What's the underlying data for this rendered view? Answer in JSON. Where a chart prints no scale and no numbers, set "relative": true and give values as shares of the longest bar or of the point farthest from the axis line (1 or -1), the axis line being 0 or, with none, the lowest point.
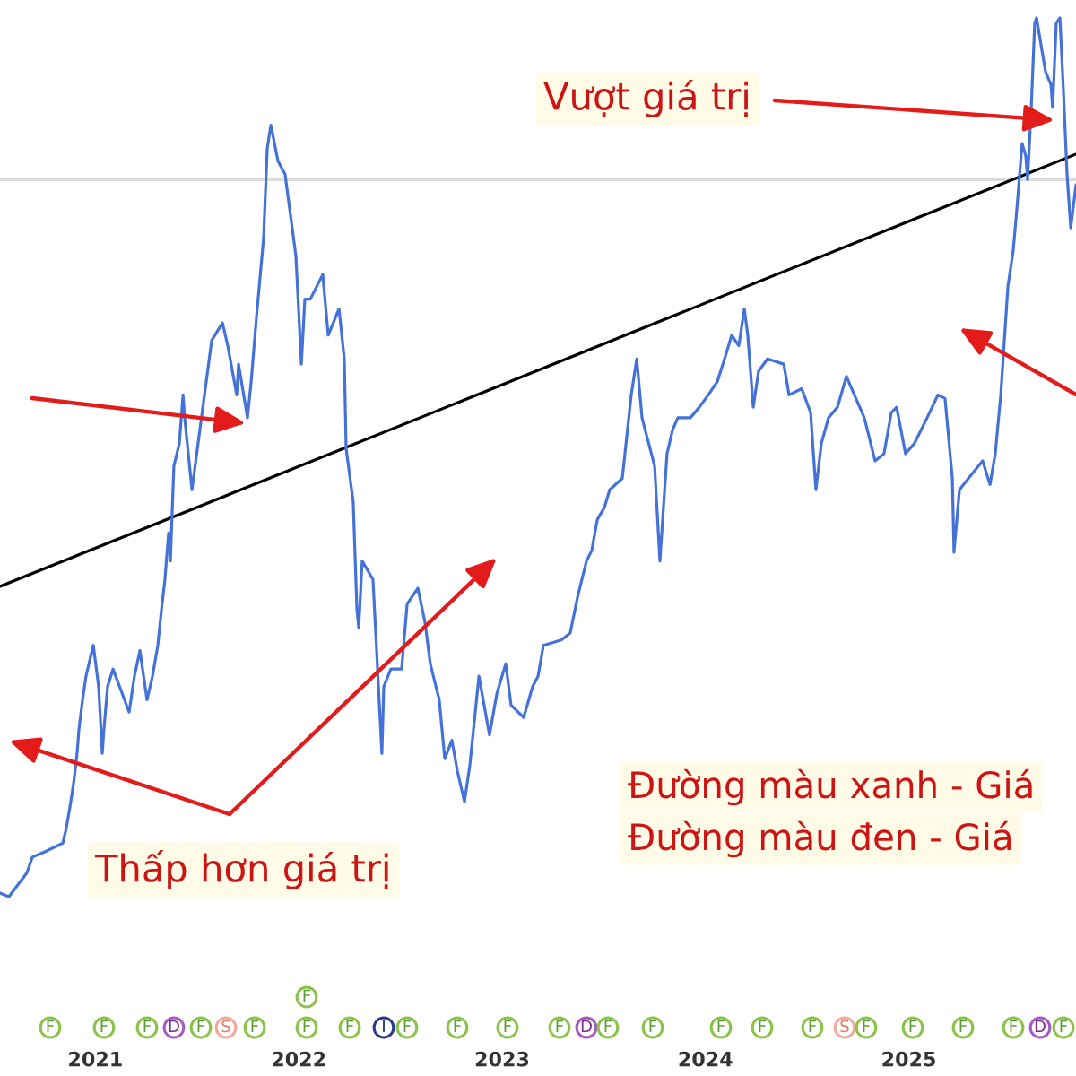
{
  "chart_data": {
    "type": "line",
    "relative": true,
    "xlim": [
      2020.531,
      2025.822
    ],
    "xticks": [
      2021,
      2022,
      2023,
      2024,
      2025
    ],
    "series": [
      {
        "color": "#4472d9",
        "x": [
          2020.531,
          2020.575,
          2020.663,
          2020.69,
          2020.751,
          2020.84,
          2020.857,
          2020.875,
          2020.893,
          2020.91,
          2020.919,
          2020.937,
          2020.954,
          2020.99,
          2021.016,
          2021.034,
          2021.042,
          2021.06,
          2021.087,
          2021.166,
          2021.192,
          2021.219,
          2021.254,
          2021.281,
          2021.307,
          2021.325,
          2021.342,
          2021.36,
          2021.369,
          2021.386,
          2021.413,
          2021.431,
          2021.439,
          2021.475,
          2021.545,
          2021.572,
          2021.625,
          2021.651,
          2021.695,
          2021.704,
          2021.748,
          2021.766,
          2021.792,
          2021.827,
          2021.845,
          2021.863,
          2021.898,
          2021.933,
          2021.986,
          2022.013,
          2022.03,
          2022.057,
          2022.118,
          2022.145,
          2022.198,
          2022.224,
          2022.233,
          2022.268,
          2022.277,
          2022.286,
          2022.295,
          2022.312,
          2022.365,
          2022.383,
          2022.409,
          2022.418,
          2022.453,
          2022.506,
          2022.533,
          2022.586,
          2022.621,
          2022.647,
          2022.691,
          2022.718,
          2022.753,
          2022.78,
          2022.815,
          2022.841,
          2022.868,
          2022.886,
          2022.938,
          2022.974,
          2023.018,
          2023.044,
          2023.106,
          2023.15,
          2023.177,
          2023.203,
          2023.291,
          2023.335,
          2023.371,
          2023.415,
          2023.441,
          2023.468,
          2023.503,
          2023.529,
          2023.591,
          2023.635,
          2023.662,
          2023.688,
          2023.75,
          2023.776,
          2023.811,
          2023.838,
          2023.864,
          2023.926,
          2023.97,
          2024.014,
          2024.058,
          2024.102,
          2024.129,
          2024.164,
          2024.191,
          2024.208,
          2024.235,
          2024.261,
          2024.305,
          2024.385,
          2024.411,
          2024.473,
          2024.517,
          2024.543,
          2024.57,
          2024.605,
          2024.649,
          2024.693,
          2024.781,
          2024.834,
          2024.878,
          2024.914,
          2024.94,
          2024.984,
          2025.028,
          2025.09,
          2025.143,
          2025.178,
          2025.214,
          2025.222,
          2025.249,
          2025.293,
          2025.363,
          2025.399,
          2025.425,
          2025.452,
          2025.487,
          2025.513,
          2025.531,
          2025.557,
          2025.575,
          2025.584,
          2025.602,
          2025.619,
          2025.628,
          2025.672,
          2025.699,
          2025.707,
          2025.725,
          2025.743,
          2025.76,
          2025.778,
          2025.796,
          2025.822
        ],
        "values": [
          0.004,
          0,
          0.027,
          0.045,
          0.051,
          0.061,
          0.078,
          0.102,
          0.129,
          0.163,
          0.19,
          0.224,
          0.251,
          0.286,
          0.239,
          0.163,
          0.19,
          0.239,
          0.259,
          0.21,
          0.251,
          0.28,
          0.224,
          0.251,
          0.286,
          0.327,
          0.361,
          0.414,
          0.382,
          0.49,
          0.516,
          0.571,
          0.545,
          0.463,
          0.586,
          0.633,
          0.653,
          0.627,
          0.571,
          0.606,
          0.545,
          0.586,
          0.659,
          0.749,
          0.851,
          0.878,
          0.837,
          0.822,
          0.729,
          0.606,
          0.68,
          0.68,
          0.708,
          0.639,
          0.669,
          0.612,
          0.51,
          0.449,
          0.388,
          0.327,
          0.306,
          0.382,
          0.361,
          0.28,
          0.163,
          0.239,
          0.259,
          0.259,
          0.333,
          0.351,
          0.312,
          0.265,
          0.224,
          0.157,
          0.178,
          0.143,
          0.108,
          0.149,
          0.21,
          0.251,
          0.184,
          0.231,
          0.265,
          0.218,
          0.204,
          0.239,
          0.251,
          0.286,
          0.292,
          0.3,
          0.341,
          0.382,
          0.394,
          0.429,
          0.443,
          0.463,
          0.476,
          0.571,
          0.612,
          0.545,
          0.49,
          0.382,
          0.504,
          0.531,
          0.545,
          0.545,
          0.557,
          0.571,
          0.586,
          0.618,
          0.639,
          0.627,
          0.669,
          0.639,
          0.557,
          0.598,
          0.612,
          0.606,
          0.571,
          0.578,
          0.551,
          0.463,
          0.516,
          0.545,
          0.557,
          0.592,
          0.545,
          0.496,
          0.504,
          0.551,
          0.557,
          0.504,
          0.516,
          0.545,
          0.571,
          0.567,
          0.476,
          0.392,
          0.463,
          0.476,
          0.496,
          0.469,
          0.504,
          0.571,
          0.694,
          0.735,
          0.782,
          0.857,
          0.843,
          0.816,
          0.898,
          0.994,
          1,
          0.939,
          0.924,
          0.898,
          0.994,
          1,
          0.918,
          0.822,
          0.761,
          0.81
        ]
      },
      {
        "color": "#000000",
        "x": [
          2020.531,
          2025.822
        ],
        "values": [
          0.353,
          0.845
        ]
      }
    ],
    "ref_lines": [
      {
        "axis": "y",
        "value": 0.816,
        "color": "#dcdcdc"
      }
    ],
    "annotations": [
      "Vượt giá trị",
      "Thấp hơn giá trị",
      "Đường màu xanh - Giá",
      "Đường màu đen - Giá",
      "F",
      "F",
      "F",
      "D",
      "F",
      "S",
      "F",
      "F",
      "F",
      "F",
      "I",
      "F",
      "F",
      "F",
      "F",
      "D",
      "F",
      "F",
      "F",
      "F",
      "F",
      "S",
      "F",
      "F",
      "F",
      "F",
      "D",
      "F"
    ]
  }
}
